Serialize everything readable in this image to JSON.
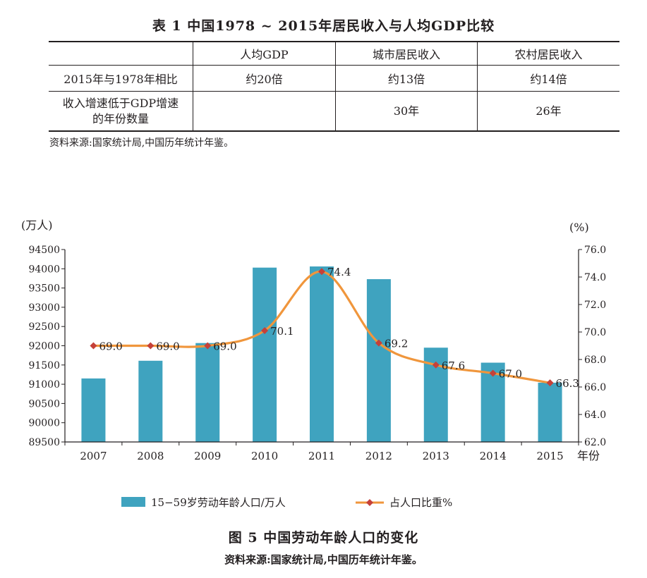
{
  "table": {
    "title": "表 1 中国1978 ~ 2015年居民收入与人均GDP比较",
    "headers": [
      "",
      "人均GDP",
      "城市居民收入",
      "农村居民收入"
    ],
    "rows": [
      {
        "label": "2015年与1978年相比",
        "cells": [
          "约20倍",
          "约13倍",
          "约14倍"
        ]
      },
      {
        "label": "收入增速低于GDP增速的年份数量",
        "cells": [
          "",
          "30年",
          "26年"
        ]
      }
    ],
    "source": "资料来源:国家统计局,中国历年统计年鉴。"
  },
  "chart_data": {
    "type": "bar",
    "title": "图 5 中国劳动年龄人口的变化",
    "source": "资料来源:国家统计局,中国历年统计年鉴。",
    "categories": [
      "2007",
      "2008",
      "2009",
      "2010",
      "2011",
      "2012",
      "2013",
      "2014",
      "2015"
    ],
    "xlabel": "年份",
    "ylabel_left": "(万人)",
    "ylabel_right": "(%)",
    "ylim_left": [
      89500,
      94500
    ],
    "ylim_right": [
      62.0,
      76.0
    ],
    "yticks_left": [
      "89500",
      "90000",
      "90500",
      "91000",
      "91500",
      "92000",
      "92500",
      "93000",
      "93500",
      "94000",
      "94500"
    ],
    "yticks_right": [
      "62.0",
      "64.0",
      "66.0",
      "68.0",
      "70.0",
      "72.0",
      "74.0",
      "76.0"
    ],
    "series": [
      {
        "name": "15−59岁劳动年龄人口/万人",
        "type": "bar",
        "axis": "left",
        "color": "#3fa3bf",
        "values": [
          91150,
          91610,
          92070,
          94030,
          94060,
          93730,
          91950,
          91560,
          91040
        ]
      },
      {
        "name": "占人口比重%",
        "type": "line",
        "axis": "right",
        "color": "#f0963c",
        "marker_color": "#c5413a",
        "values": [
          69.0,
          69.0,
          69.0,
          70.1,
          74.4,
          69.2,
          67.6,
          67.0,
          66.3
        ],
        "labels": [
          "69.0",
          "69.0",
          "69.0",
          "70.1",
          "74.4",
          "69.2",
          "67.6",
          "67.0",
          "66.3"
        ]
      }
    ],
    "legend_position": "bottom",
    "grid": false
  }
}
